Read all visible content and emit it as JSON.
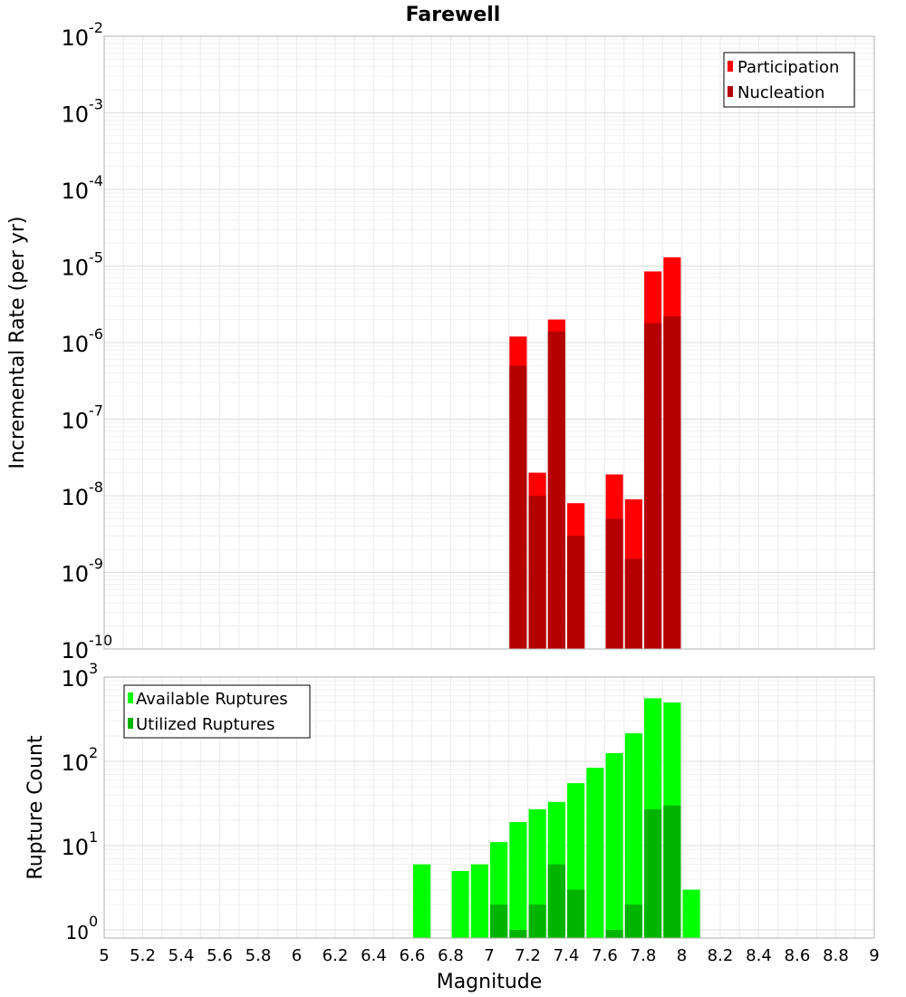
{
  "chart_data": [
    {
      "type": "bar",
      "title": "Farewell",
      "ylabel": "Incremental Rate (per yr)",
      "xlim": [
        5,
        9
      ],
      "ylim": [
        1e-10,
        0.01
      ],
      "yscale": "log",
      "grid": true,
      "legend_position": "top-right",
      "y_ticks": [
        {
          "base": "10",
          "exp": "-10"
        },
        {
          "base": "10",
          "exp": "-9"
        },
        {
          "base": "10",
          "exp": "-8"
        },
        {
          "base": "10",
          "exp": "-7"
        },
        {
          "base": "10",
          "exp": "-6"
        },
        {
          "base": "10",
          "exp": "-5"
        },
        {
          "base": "10",
          "exp": "-4"
        },
        {
          "base": "10",
          "exp": "-3"
        },
        {
          "base": "10",
          "exp": "-2"
        }
      ],
      "x": [
        7.15,
        7.25,
        7.35,
        7.45,
        7.65,
        7.75,
        7.85,
        7.95
      ],
      "series": [
        {
          "name": "Participation",
          "color": "#ff0000",
          "values": [
            1.2e-06,
            2e-08,
            2e-06,
            8e-09,
            1.9e-08,
            9e-09,
            8.5e-06,
            1.3e-05
          ]
        },
        {
          "name": "Nucleation",
          "color": "#b40000",
          "values": [
            5e-07,
            1e-08,
            1.4e-06,
            3e-09,
            5e-09,
            1.5e-09,
            1.8e-06,
            2.2e-06
          ]
        }
      ]
    },
    {
      "type": "bar",
      "xlabel": "Magnitude",
      "ylabel": "Rupture Count",
      "xlim": [
        5,
        9
      ],
      "ylim": [
        0.8,
        1000
      ],
      "yscale": "log",
      "grid": true,
      "legend_position": "top-left",
      "x_tick_labels": [
        "5",
        "5.2",
        "5.4",
        "5.6",
        "5.8",
        "6",
        "6.2",
        "6.4",
        "6.6",
        "6.8",
        "7",
        "7.2",
        "7.4",
        "7.6",
        "7.8",
        "8",
        "8.2",
        "8.4",
        "8.6",
        "8.8",
        "9"
      ],
      "y_ticks": [
        {
          "base": "10",
          "exp": "0"
        },
        {
          "base": "10",
          "exp": "1"
        },
        {
          "base": "10",
          "exp": "2"
        },
        {
          "base": "10",
          "exp": "3"
        }
      ],
      "x": [
        6.65,
        6.85,
        6.95,
        7.05,
        7.15,
        7.25,
        7.35,
        7.45,
        7.55,
        7.65,
        7.75,
        7.85,
        7.95,
        8.05
      ],
      "series": [
        {
          "name": "Available Ruptures",
          "color": "#00ff00",
          "values": [
            6,
            5,
            6,
            11,
            19,
            27,
            33,
            55,
            84,
            125,
            215,
            560,
            500,
            3
          ]
        },
        {
          "name": "Utilized Ruptures",
          "color": "#00b400",
          "values": [
            0,
            0,
            0,
            2,
            1,
            2,
            6,
            3,
            0,
            1,
            2,
            27,
            30,
            0
          ]
        }
      ]
    }
  ]
}
